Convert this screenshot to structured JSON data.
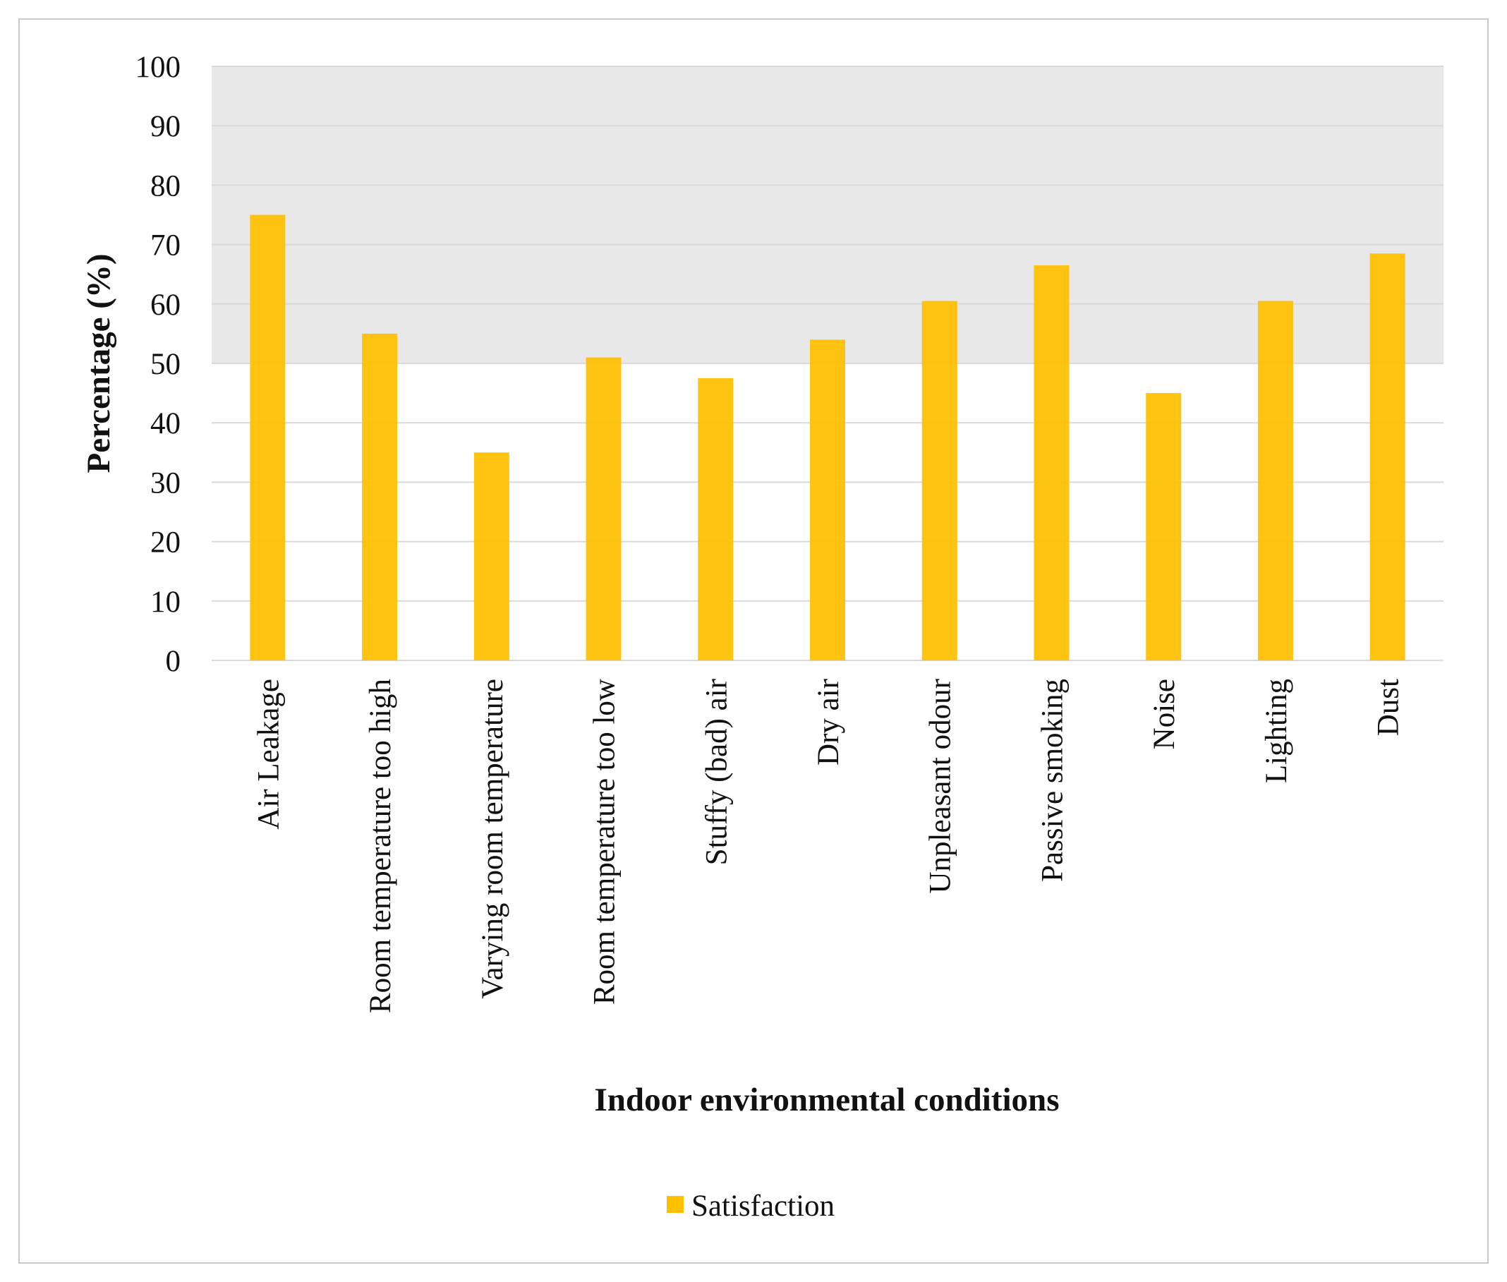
{
  "chart_data": {
    "type": "bar",
    "title": "",
    "xlabel": "Indoor environmental conditions",
    "ylabel": "Percentage (%)",
    "ylim": [
      0,
      100
    ],
    "yticks": [
      0,
      10,
      20,
      30,
      40,
      50,
      60,
      70,
      80,
      90,
      100
    ],
    "grid": true,
    "shaded_band": [
      50,
      100
    ],
    "legend_position": "bottom-center",
    "categories": [
      "Air Leakage",
      "Room temperature too high",
      "Varying room temperature",
      "Room temperature too low",
      "Stuffy (bad) air",
      "Dry air",
      "Unpleasant odour",
      "Passive smoking",
      "Noise",
      "Lighting",
      "Dust"
    ],
    "series": [
      {
        "name": "Satisfaction",
        "color": "#FFC000",
        "values": [
          75,
          55,
          35,
          51,
          47.5,
          54,
          60.5,
          66.5,
          45,
          60.5,
          68.5
        ]
      }
    ]
  },
  "colors": {
    "band": "#e8e8e8",
    "grid": "#d9d9d9",
    "bar": "#FFC000"
  }
}
